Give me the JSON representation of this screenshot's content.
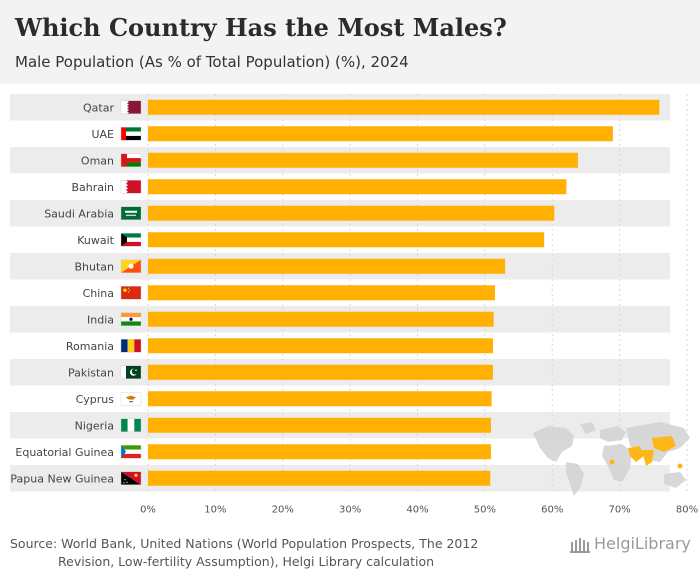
{
  "header": {
    "title": "Which Country Has the Most Males?",
    "subtitle": "Male Population (As % of Total Population) (%), 2024"
  },
  "chart_data": {
    "type": "bar",
    "orientation": "horizontal",
    "title": "Which Country Has the Most Males?",
    "subtitle": "Male Population (As % of Total Population) (%), 2024",
    "xlabel": "",
    "ylabel": "",
    "xlim": [
      0,
      80
    ],
    "tick_values": [
      0,
      10,
      20,
      30,
      40,
      50,
      60,
      70,
      80
    ],
    "tick_labels": [
      "0%",
      "10%",
      "20%",
      "30%",
      "40%",
      "50%",
      "60%",
      "70%",
      "80%"
    ],
    "categories": [
      "Qatar",
      "UAE",
      "Oman",
      "Bahrain",
      "Saudi Arabia",
      "Kuwait",
      "Bhutan",
      "China",
      "India",
      "Romania",
      "Pakistan",
      "Cyprus",
      "Nigeria",
      "Equatorial Guinea",
      "Papua New Guinea"
    ],
    "values": [
      75.9,
      69.0,
      63.8,
      62.1,
      60.3,
      58.8,
      53.0,
      51.5,
      51.3,
      51.2,
      51.2,
      51.0,
      50.9,
      50.9,
      50.8
    ],
    "bar_color": "#ffb000",
    "row_band_color": "#ececec",
    "flags": [
      "qatar-flag",
      "uae-flag",
      "oman-flag",
      "bahrain-flag",
      "saudi-arabia-flag",
      "kuwait-flag",
      "bhutan-flag",
      "china-flag",
      "india-flag",
      "romania-flag",
      "pakistan-flag",
      "cyprus-flag",
      "nigeria-flag",
      "equatorial-guinea-flag",
      "papua-new-guinea-flag"
    ]
  },
  "footer": {
    "source_line1": "Source: World Bank, United Nations (World Population Prospects, The 2012",
    "source_line2": "Revision, Low-fertility Assumption), Helgi Library calculation",
    "brand": "HelgiLibrary"
  },
  "colors": {
    "header_bg": "#f3f3f3",
    "accent": "#ffb000",
    "map_land": "#d4d4d4"
  }
}
